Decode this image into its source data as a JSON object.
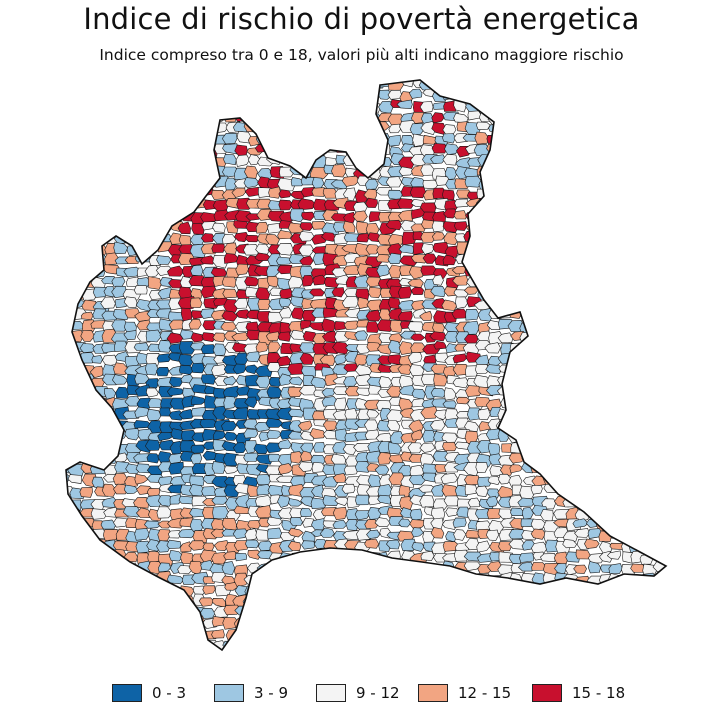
{
  "title": "Indice di rischio di povertà energetica",
  "subtitle": "Indice compreso tra 0 e 18, valori più alti indicano maggiore rischio",
  "legend": [
    {
      "label": "0 - 3",
      "color": "#0e63a6"
    },
    {
      "label": "3 - 9",
      "color": "#9ec7e2"
    },
    {
      "label": "9 - 12",
      "color": "#f4f4f4"
    },
    {
      "label": "12 - 15",
      "color": "#f2a582"
    },
    {
      "label": "15 - 18",
      "color": "#c8102e"
    }
  ],
  "colors": {
    "outline": "#1a1a1a",
    "background": "#ffffff"
  },
  "map": {
    "region": "Lombardia",
    "unit": "comuni",
    "classes": 5
  }
}
